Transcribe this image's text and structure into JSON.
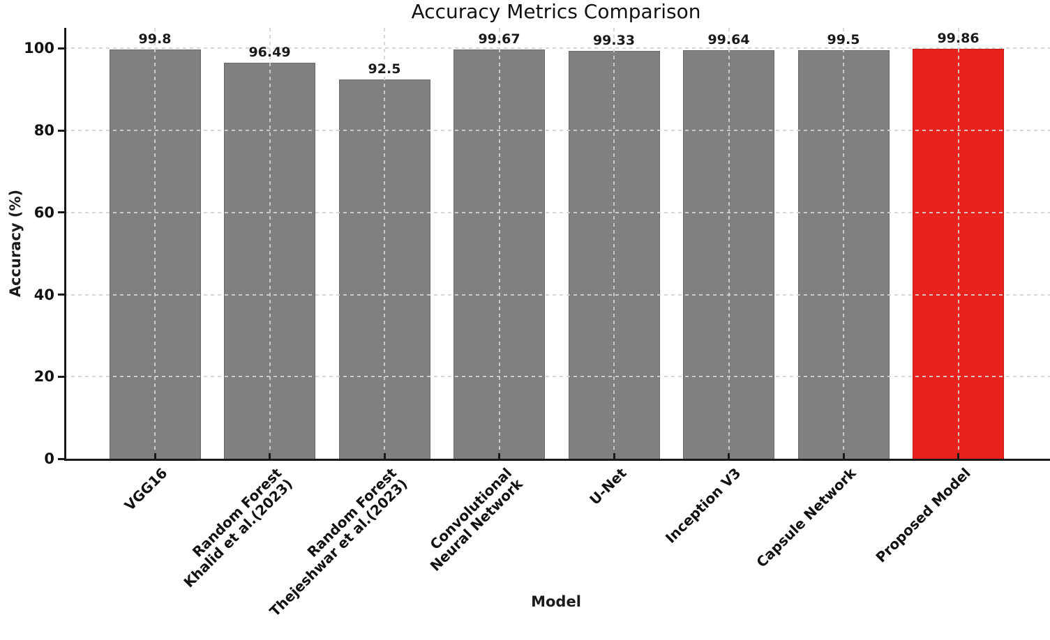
{
  "chart_data": {
    "type": "bar",
    "title": "Accuracy Metrics Comparison",
    "xlabel": "Model",
    "ylabel": "Accuracy (%)",
    "categories": [
      "VGG16",
      "Random Forest\nKhalid et al.(2023)",
      "Random Forest\nThejeshwar et al.(2023)",
      "Convolutional\nNeural Network",
      "U-Net",
      "Inception V3",
      "Capsule Network",
      "Proposed Model"
    ],
    "values": [
      99.8,
      96.49,
      92.5,
      99.67,
      99.33,
      99.64,
      99.5,
      99.86
    ],
    "value_labels": [
      "99.8",
      "96.49",
      "92.5",
      "99.67",
      "99.33",
      "99.64",
      "99.5",
      "99.86"
    ],
    "yticks": [
      0,
      20,
      40,
      60,
      80,
      100
    ],
    "ytick_labels": [
      "0",
      "20",
      "40",
      "60",
      "80",
      "100"
    ],
    "ylim": [
      0,
      105
    ],
    "grid": "dashed",
    "grid_color": "#d3d3d3",
    "default_bar_color": "#808080",
    "highlight_bar_color": "#e8221f",
    "highlight_index": 7,
    "spine_color": "#1a1a1a",
    "legend": "none"
  }
}
